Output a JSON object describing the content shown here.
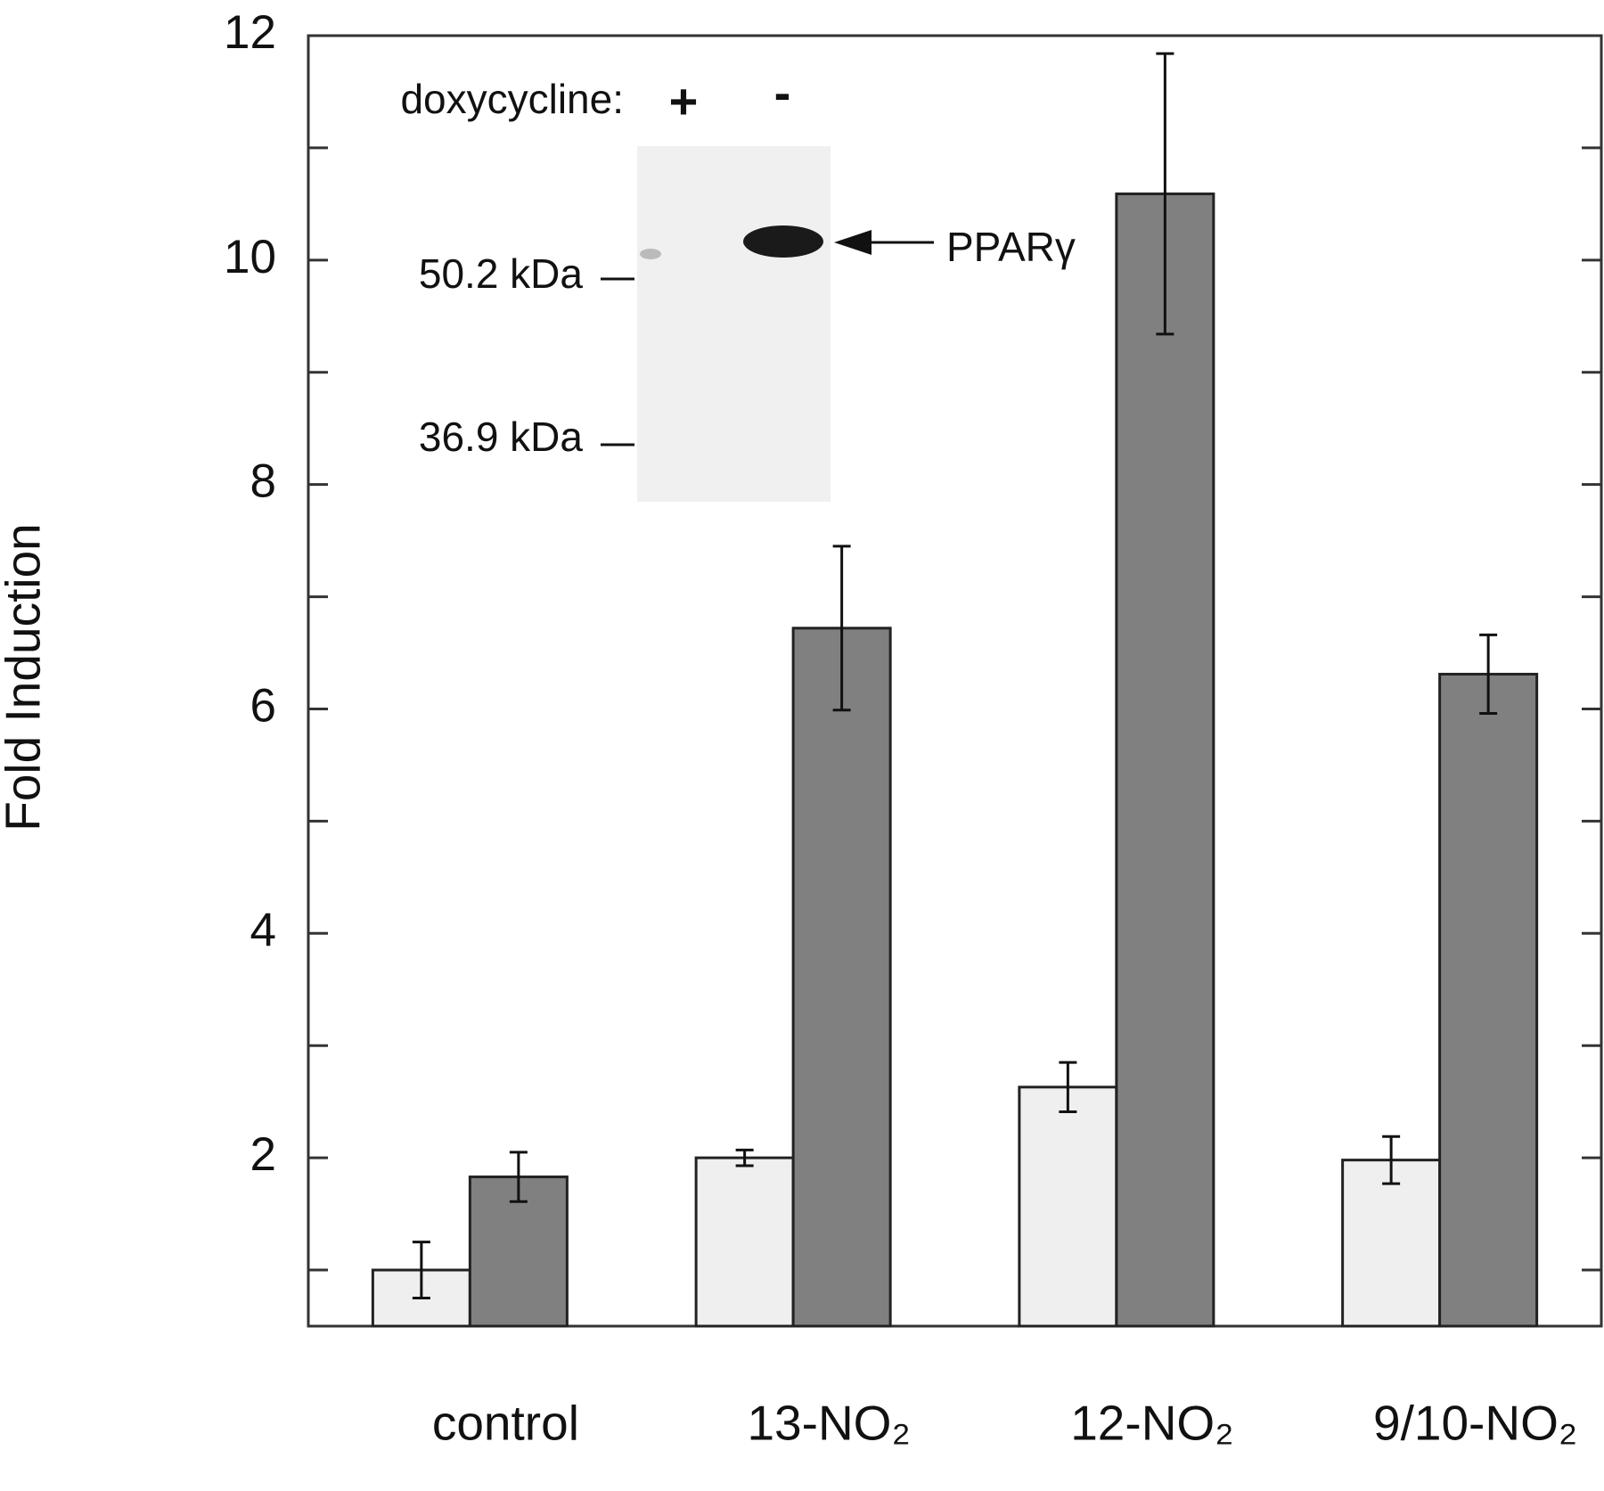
{
  "chart_data": {
    "type": "bar",
    "y_label": "Fold Induction",
    "categories": [
      "control",
      "13-NO₂",
      "12-NO₂",
      "9/10-NO₂"
    ],
    "series": [
      {
        "color": "#efefef",
        "values": [
          1.0,
          2.0,
          2.63,
          1.98
        ],
        "errors": [
          0.25,
          0.07,
          0.22,
          0.21
        ]
      },
      {
        "color": "#808080",
        "values": [
          1.83,
          6.72,
          10.59,
          6.31
        ],
        "errors": [
          0.22,
          0.73,
          1.25,
          0.35
        ]
      }
    ],
    "ylim": [
      0.5,
      12
    ],
    "yticks": [
      2,
      4,
      6,
      8,
      10,
      12
    ],
    "minor_yticks": [
      1,
      3,
      5,
      7,
      9,
      11
    ],
    "inset": {
      "doxycycline_label": "doxycycline:",
      "lanes": [
        "+",
        "-"
      ],
      "markers": [
        "50.2 kDa",
        "36.9 kDa"
      ],
      "band_label": "PPARγ"
    }
  }
}
